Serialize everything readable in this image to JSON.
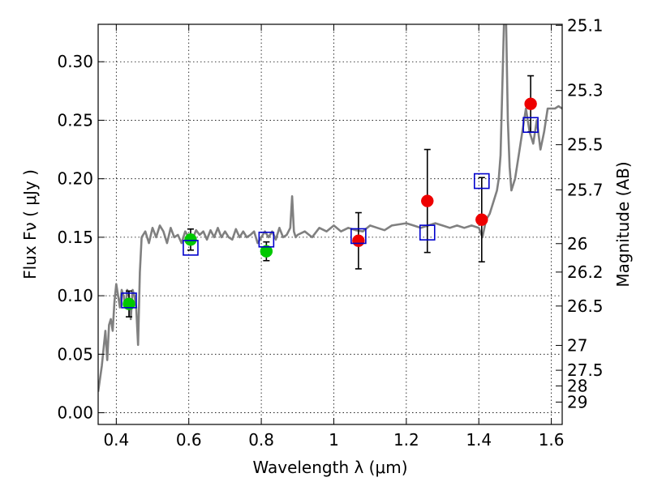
{
  "chart_data": {
    "type": "scatter",
    "xlabel": "Wavelength  λ (μm)",
    "ylabel": "Flux  Fν  ( μJy )",
    "y2label": "Magnitude (AB)",
    "xlim": [
      0.35,
      1.63
    ],
    "ylim": [
      -0.01,
      0.332
    ],
    "grid": true,
    "x_ticks": [
      0.4,
      0.6,
      0.8,
      1.0,
      1.2,
      1.4,
      1.6
    ],
    "x_tick_labels": [
      "0.4",
      "0.6",
      "0.8",
      "1",
      "1.2",
      "1.4",
      "1.6"
    ],
    "y_ticks": [
      0.0,
      0.05,
      0.1,
      0.15,
      0.2,
      0.25,
      0.3
    ],
    "y_tick_labels": [
      "0.00",
      "0.05",
      "0.10",
      "0.15",
      "0.20",
      "0.25",
      "0.30"
    ],
    "y2_ticks": [
      25.1,
      25.3,
      25.5,
      25.7,
      26.0,
      26.2,
      26.5,
      27.0,
      27.5,
      28.0,
      29.0
    ],
    "y2_tick_labels": [
      "25.1",
      "25.3",
      "25.5",
      "25.7",
      "26",
      "26.2",
      "26.5",
      "27",
      "27.5",
      "28",
      "29"
    ],
    "colors": {
      "spectrum": "#808080",
      "observed_green": "#00c800",
      "observed_red": "#ee0000",
      "model_box": "#0000cc",
      "errorbar": "#000000"
    },
    "series": [
      {
        "kind": "line",
        "x": [
          0.35,
          0.36,
          0.37,
          0.375,
          0.38,
          0.385,
          0.39,
          0.395,
          0.4,
          0.405,
          0.41,
          0.415,
          0.42,
          0.425,
          0.43,
          0.435,
          0.44,
          0.445,
          0.45,
          0.455,
          0.46,
          0.465,
          0.47,
          0.48,
          0.49,
          0.5,
          0.51,
          0.52,
          0.53,
          0.54,
          0.55,
          0.56,
          0.57,
          0.58,
          0.59,
          0.6,
          0.61,
          0.62,
          0.63,
          0.64,
          0.65,
          0.66,
          0.67,
          0.68,
          0.69,
          0.7,
          0.71,
          0.72,
          0.73,
          0.74,
          0.75,
          0.76,
          0.77,
          0.78,
          0.79,
          0.8,
          0.81,
          0.82,
          0.83,
          0.84,
          0.85,
          0.86,
          0.87,
          0.88,
          0.885,
          0.89,
          0.895,
          0.9,
          0.92,
          0.94,
          0.96,
          0.98,
          1.0,
          1.02,
          1.04,
          1.06,
          1.08,
          1.1,
          1.12,
          1.14,
          1.16,
          1.18,
          1.2,
          1.22,
          1.24,
          1.26,
          1.28,
          1.3,
          1.32,
          1.34,
          1.36,
          1.38,
          1.4,
          1.41,
          1.42,
          1.43,
          1.44,
          1.45,
          1.455,
          1.46,
          1.47,
          1.475,
          1.48,
          1.485,
          1.49,
          1.5,
          1.51,
          1.52,
          1.53,
          1.54,
          1.55,
          1.56,
          1.57,
          1.58,
          1.59,
          1.6,
          1.61,
          1.62,
          1.63
        ],
        "y": [
          0.018,
          0.04,
          0.07,
          0.045,
          0.075,
          0.08,
          0.07,
          0.095,
          0.11,
          0.1,
          0.09,
          0.105,
          0.1,
          0.09,
          0.105,
          0.1,
          0.08,
          0.105,
          0.1,
          0.09,
          0.058,
          0.12,
          0.15,
          0.155,
          0.145,
          0.158,
          0.15,
          0.16,
          0.155,
          0.145,
          0.158,
          0.15,
          0.152,
          0.145,
          0.155,
          0.15,
          0.148,
          0.156,
          0.152,
          0.155,
          0.148,
          0.156,
          0.15,
          0.158,
          0.15,
          0.155,
          0.15,
          0.148,
          0.157,
          0.15,
          0.155,
          0.15,
          0.152,
          0.155,
          0.145,
          0.15,
          0.155,
          0.15,
          0.155,
          0.148,
          0.158,
          0.15,
          0.152,
          0.158,
          0.185,
          0.155,
          0.15,
          0.152,
          0.155,
          0.15,
          0.158,
          0.155,
          0.16,
          0.155,
          0.158,
          0.156,
          0.155,
          0.16,
          0.158,
          0.156,
          0.16,
          0.161,
          0.162,
          0.16,
          0.158,
          0.16,
          0.162,
          0.16,
          0.158,
          0.16,
          0.158,
          0.16,
          0.158,
          0.15,
          0.165,
          0.17,
          0.18,
          0.19,
          0.2,
          0.22,
          0.34,
          0.34,
          0.25,
          0.21,
          0.19,
          0.2,
          0.22,
          0.24,
          0.26,
          0.24,
          0.23,
          0.25,
          0.225,
          0.24,
          0.26,
          0.26,
          0.26,
          0.262,
          0.26
        ]
      },
      {
        "kind": "scatter",
        "marker": "circle",
        "color_key": "observed_green",
        "points": [
          {
            "x": 0.435,
            "y": 0.093,
            "yerr": 0.011
          },
          {
            "x": 0.605,
            "y": 0.148,
            "yerr": 0.009
          },
          {
            "x": 0.814,
            "y": 0.138,
            "yerr": 0.008
          }
        ]
      },
      {
        "kind": "scatter",
        "marker": "circle",
        "color_key": "observed_red",
        "points": [
          {
            "x": 1.068,
            "y": 0.147,
            "yerr": 0.024
          },
          {
            "x": 1.258,
            "y": 0.181,
            "yerr": 0.044
          },
          {
            "x": 1.408,
            "y": 0.165,
            "yerr": 0.036
          },
          {
            "x": 1.543,
            "y": 0.264,
            "yerr": 0.024
          }
        ]
      },
      {
        "kind": "scatter",
        "marker": "square",
        "color_key": "model_box",
        "points": [
          {
            "x": 0.435,
            "y": 0.096
          },
          {
            "x": 0.605,
            "y": 0.141
          },
          {
            "x": 0.814,
            "y": 0.148
          },
          {
            "x": 1.068,
            "y": 0.151
          },
          {
            "x": 1.258,
            "y": 0.154
          },
          {
            "x": 1.408,
            "y": 0.198
          },
          {
            "x": 1.543,
            "y": 0.246
          }
        ]
      }
    ]
  }
}
